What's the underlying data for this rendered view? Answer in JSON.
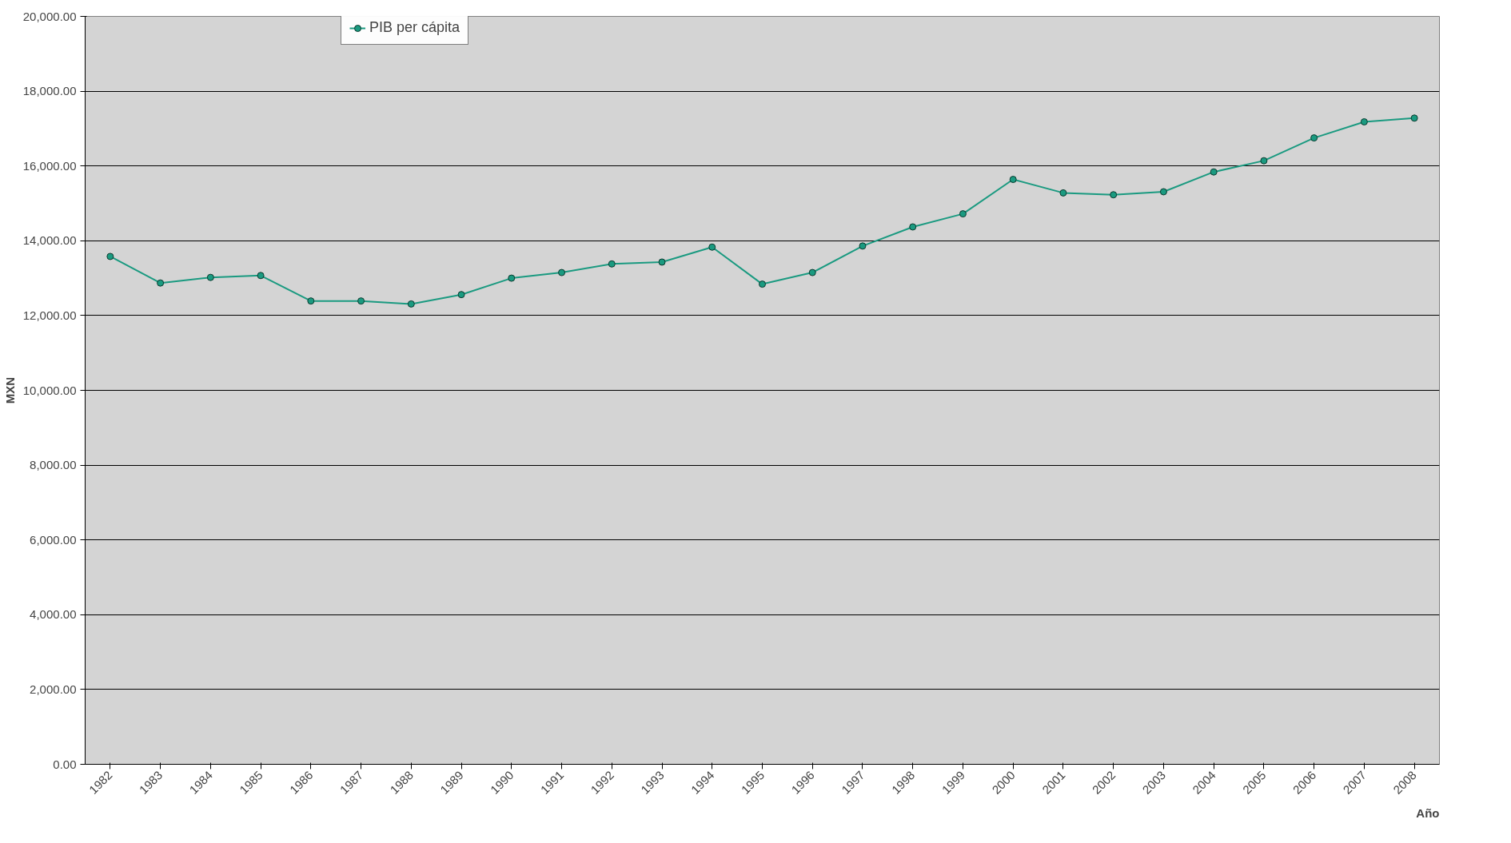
{
  "chart_data": {
    "type": "line",
    "xlabel": "Año",
    "ylabel": "MXN",
    "categories": [
      "1982",
      "1983",
      "1984",
      "1985",
      "1986",
      "1987",
      "1988",
      "1989",
      "1990",
      "1991",
      "1992",
      "1993",
      "1994",
      "1995",
      "1996",
      "1997",
      "1998",
      "1999",
      "2000",
      "2001",
      "2002",
      "2003",
      "2004",
      "2005",
      "2006",
      "2007",
      "2008"
    ],
    "series": [
      {
        "name": "PIB per cápita",
        "color": "#1a9a80",
        "values": [
          13580,
          12870,
          13020,
          13070,
          12390,
          12390,
          12310,
          12560,
          13000,
          13150,
          13380,
          13430,
          13830,
          12840,
          13150,
          13860,
          14370,
          14720,
          15640,
          15280,
          15230,
          15310,
          15840,
          16140,
          16750,
          17180,
          17280
        ]
      }
    ],
    "ylim": [
      0,
      20000
    ],
    "yticks": [
      {
        "value": 0,
        "label": "0.00"
      },
      {
        "value": 2000,
        "label": "2,000.00"
      },
      {
        "value": 4000,
        "label": "4,000.00"
      },
      {
        "value": 6000,
        "label": "6,000.00"
      },
      {
        "value": 8000,
        "label": "8,000.00"
      },
      {
        "value": 10000,
        "label": "10,000.00"
      },
      {
        "value": 12000,
        "label": "12,000.00"
      },
      {
        "value": 14000,
        "label": "14,000.00"
      },
      {
        "value": 16000,
        "label": "16,000.00"
      },
      {
        "value": 18000,
        "label": "18,000.00"
      },
      {
        "value": 20000,
        "label": "20,000.00"
      }
    ],
    "grid": "y",
    "legend": "top left",
    "marker": "circle",
    "line_style": "solid"
  }
}
